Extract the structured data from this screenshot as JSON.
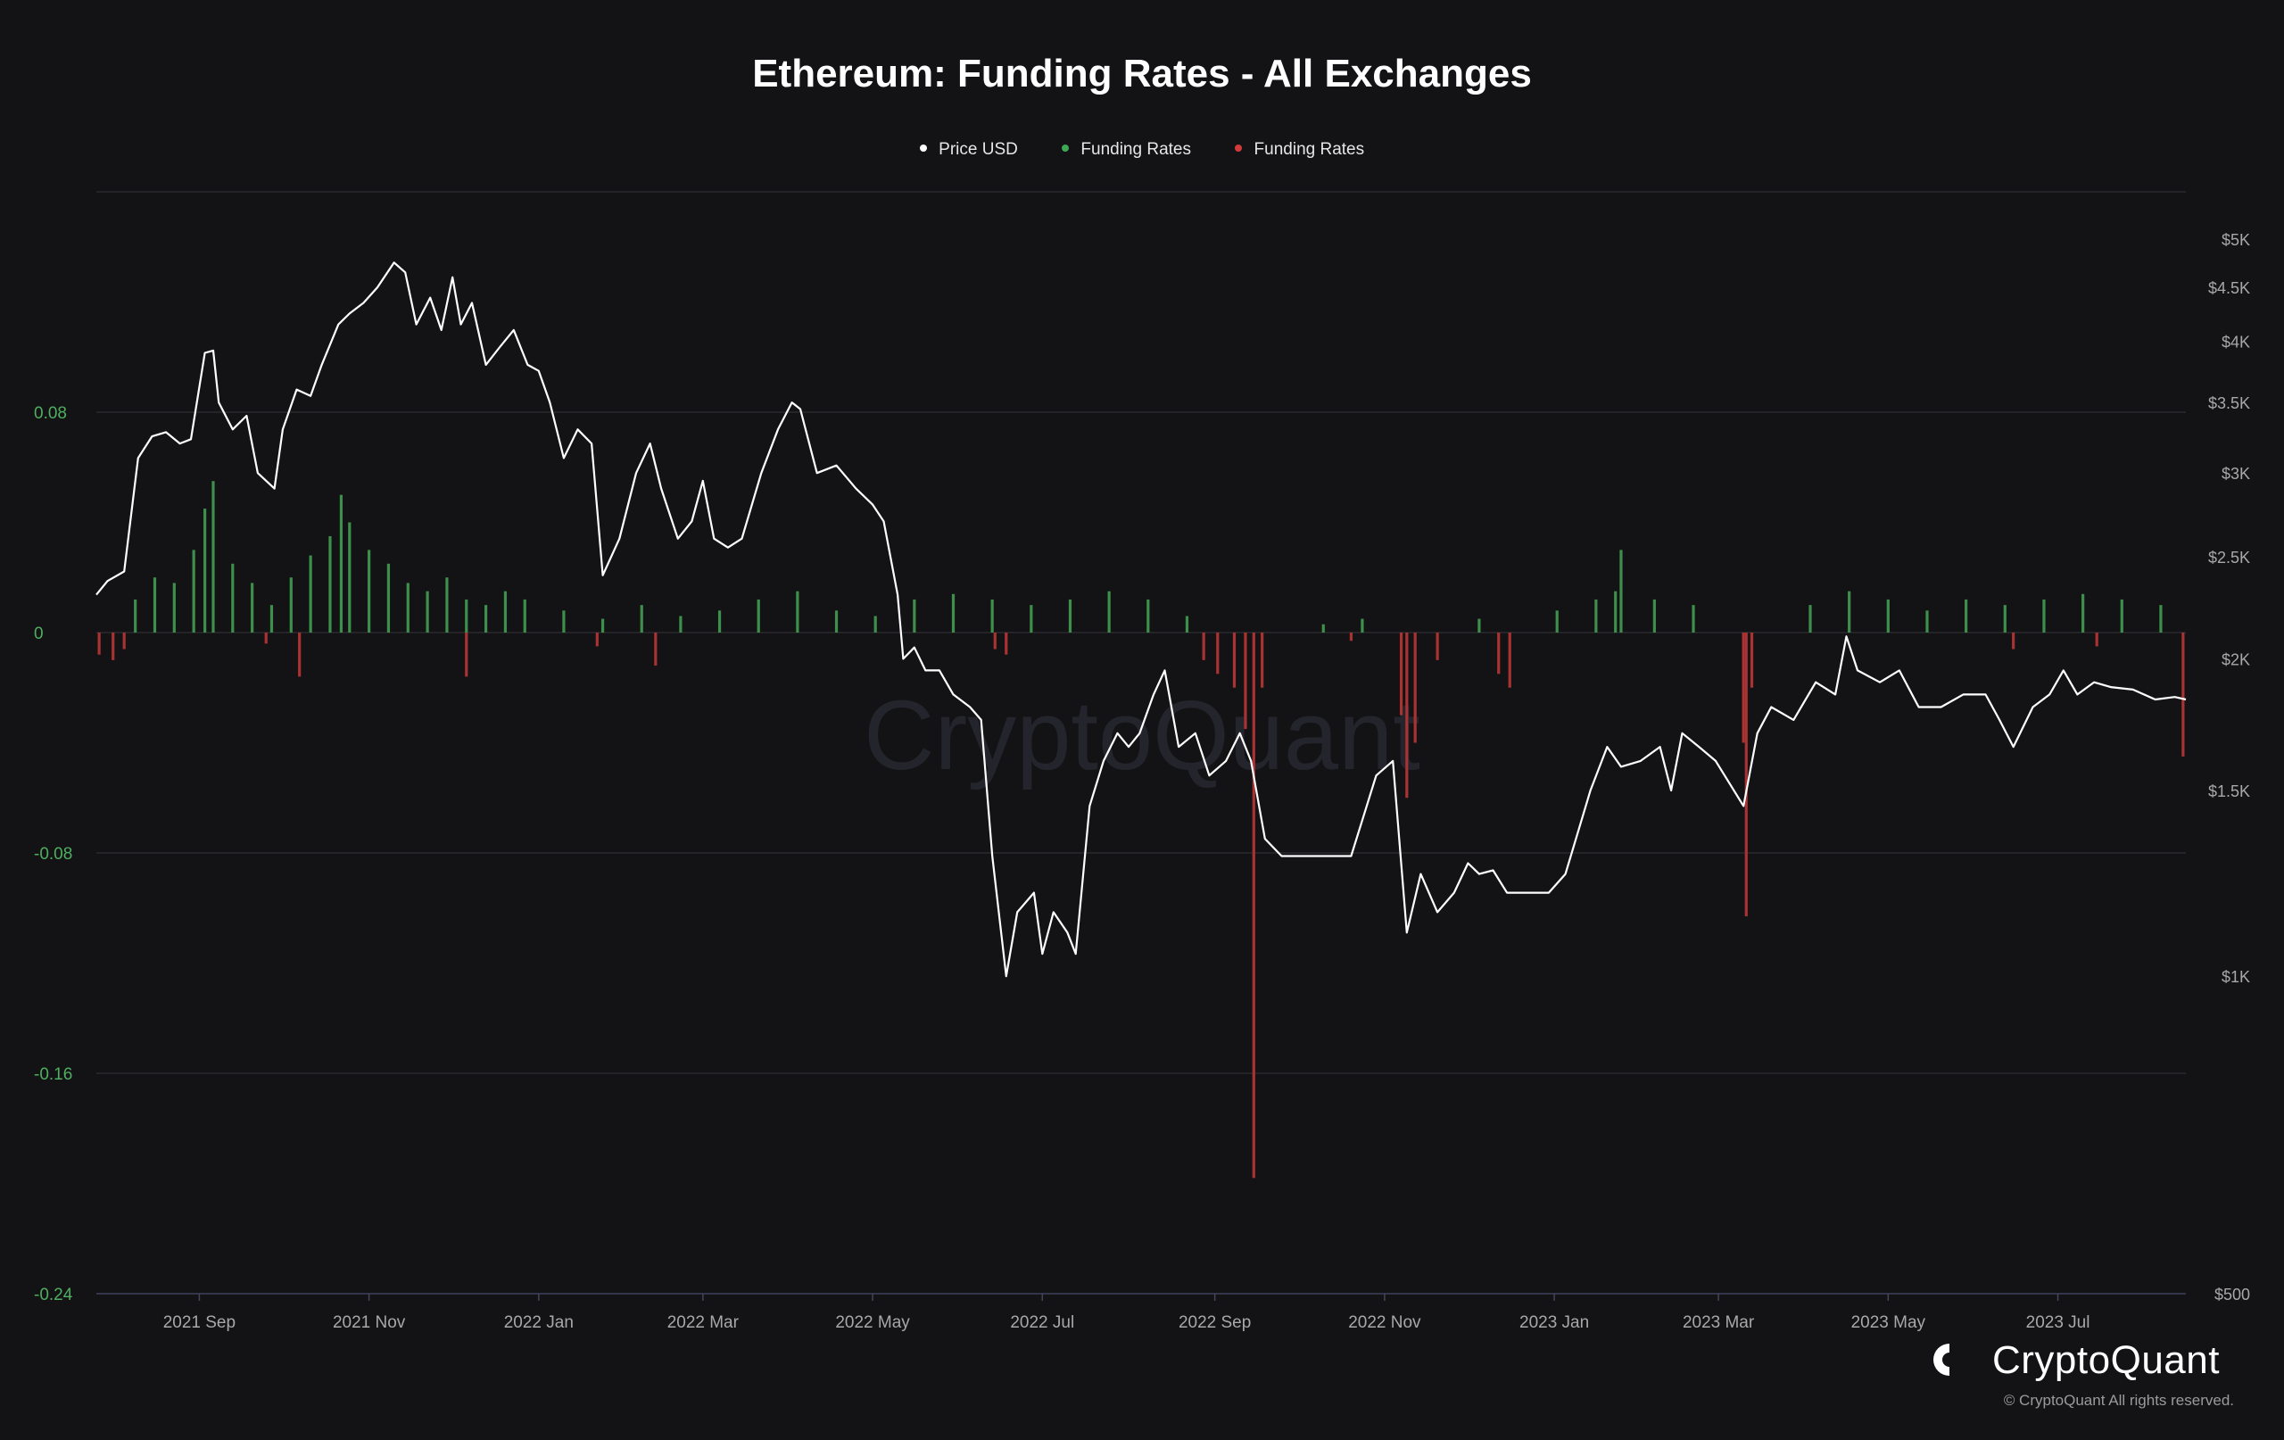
{
  "header": {
    "title": "Ethereum: Funding Rates - All Exchanges"
  },
  "legend": [
    {
      "label": "Price USD",
      "color": "#ffffff"
    },
    {
      "label": "Funding Rates",
      "color": "#3fa653"
    },
    {
      "label": "Funding Rates",
      "color": "#d23b3b"
    }
  ],
  "brand": {
    "name": "CryptoQuant",
    "copyright": "© CryptoQuant All rights reserved.",
    "watermark": "CryptoQuant"
  },
  "colors": {
    "price_line": "#ffffff",
    "positive": "#3d8f4b",
    "negative": "#a93232",
    "left_axis_text": "#4fae5f",
    "right_axis_text": "#a8a8a8",
    "grid": "#2a2a2e"
  },
  "chart_data": {
    "type": "line",
    "title": "Ethereum: Funding Rates - All Exchanges",
    "x_range": [
      "2021-07-26",
      "2023-08-16"
    ],
    "x_ticks": [
      {
        "date": "2021-09-01",
        "label": "2021 Sep"
      },
      {
        "date": "2021-11-01",
        "label": "2021 Nov"
      },
      {
        "date": "2022-01-01",
        "label": "2022 Jan"
      },
      {
        "date": "2022-03-01",
        "label": "2022 Mar"
      },
      {
        "date": "2022-05-01",
        "label": "2022 May"
      },
      {
        "date": "2022-07-01",
        "label": "2022 Jul"
      },
      {
        "date": "2022-09-01",
        "label": "2022 Sep"
      },
      {
        "date": "2022-11-01",
        "label": "2022 Nov"
      },
      {
        "date": "2023-01-01",
        "label": "2023 Jan"
      },
      {
        "date": "2023-03-01",
        "label": "2023 Mar"
      },
      {
        "date": "2023-05-01",
        "label": "2023 May"
      },
      {
        "date": "2023-07-01",
        "label": "2023 Jul"
      }
    ],
    "left_axis": {
      "range": [
        -0.24,
        0.16
      ],
      "ticks": [
        0.08,
        0,
        -0.08,
        -0.16,
        -0.24
      ],
      "labels": [
        "0.08",
        "0",
        "-0.08",
        "-0.16",
        "-0.24"
      ],
      "grid": true
    },
    "right_axis": {
      "scale": "log",
      "range": [
        500,
        5000
      ],
      "ticks": [
        {
          "value": 5000,
          "label": "$5K"
        },
        {
          "value": 4500,
          "label": "$4.5K"
        },
        {
          "value": 4000,
          "label": "$4K"
        },
        {
          "value": 3500,
          "label": "$3.5K"
        },
        {
          "value": 3000,
          "label": "$3K"
        },
        {
          "value": 2500,
          "label": "$2.5K"
        },
        {
          "value": 2000,
          "label": "$2K"
        },
        {
          "value": 1500,
          "label": "$1.5K"
        },
        {
          "value": 1000,
          "label": "$1K"
        },
        {
          "value": 500,
          "label": "$500"
        }
      ]
    },
    "series": [
      {
        "name": "Price USD",
        "type": "line",
        "axis": "right",
        "points": [
          [
            "2021-07-26",
            2300
          ],
          [
            "2021-07-30",
            2370
          ],
          [
            "2021-08-05",
            2420
          ],
          [
            "2021-08-10",
            3100
          ],
          [
            "2021-08-15",
            3250
          ],
          [
            "2021-08-20",
            3280
          ],
          [
            "2021-08-25",
            3200
          ],
          [
            "2021-08-29",
            3230
          ],
          [
            "2021-09-03",
            3900
          ],
          [
            "2021-09-06",
            3920
          ],
          [
            "2021-09-08",
            3500
          ],
          [
            "2021-09-13",
            3300
          ],
          [
            "2021-09-18",
            3400
          ],
          [
            "2021-09-22",
            3000
          ],
          [
            "2021-09-28",
            2900
          ],
          [
            "2021-10-01",
            3300
          ],
          [
            "2021-10-06",
            3600
          ],
          [
            "2021-10-11",
            3550
          ],
          [
            "2021-10-15",
            3800
          ],
          [
            "2021-10-21",
            4150
          ],
          [
            "2021-10-25",
            4250
          ],
          [
            "2021-10-30",
            4350
          ],
          [
            "2021-11-04",
            4500
          ],
          [
            "2021-11-10",
            4750
          ],
          [
            "2021-11-14",
            4650
          ],
          [
            "2021-11-18",
            4150
          ],
          [
            "2021-11-23",
            4400
          ],
          [
            "2021-11-27",
            4100
          ],
          [
            "2021-12-01",
            4600
          ],
          [
            "2021-12-04",
            4150
          ],
          [
            "2021-12-08",
            4350
          ],
          [
            "2021-12-13",
            3800
          ],
          [
            "2021-12-18",
            3950
          ],
          [
            "2021-12-23",
            4100
          ],
          [
            "2021-12-28",
            3800
          ],
          [
            "2022-01-01",
            3750
          ],
          [
            "2022-01-05",
            3500
          ],
          [
            "2022-01-10",
            3100
          ],
          [
            "2022-01-15",
            3300
          ],
          [
            "2022-01-20",
            3200
          ],
          [
            "2022-01-24",
            2400
          ],
          [
            "2022-01-30",
            2600
          ],
          [
            "2022-02-05",
            3000
          ],
          [
            "2022-02-10",
            3200
          ],
          [
            "2022-02-14",
            2900
          ],
          [
            "2022-02-20",
            2600
          ],
          [
            "2022-02-25",
            2700
          ],
          [
            "2022-03-01",
            2950
          ],
          [
            "2022-03-05",
            2600
          ],
          [
            "2022-03-10",
            2550
          ],
          [
            "2022-03-15",
            2600
          ],
          [
            "2022-03-22",
            3000
          ],
          [
            "2022-03-28",
            3300
          ],
          [
            "2022-04-02",
            3500
          ],
          [
            "2022-04-05",
            3450
          ],
          [
            "2022-04-11",
            3000
          ],
          [
            "2022-04-18",
            3050
          ],
          [
            "2022-04-25",
            2900
          ],
          [
            "2022-05-01",
            2800
          ],
          [
            "2022-05-05",
            2700
          ],
          [
            "2022-05-10",
            2300
          ],
          [
            "2022-05-12",
            2000
          ],
          [
            "2022-05-16",
            2050
          ],
          [
            "2022-05-20",
            1950
          ],
          [
            "2022-05-25",
            1950
          ],
          [
            "2022-05-30",
            1850
          ],
          [
            "2022-06-05",
            1800
          ],
          [
            "2022-06-09",
            1750
          ],
          [
            "2022-06-13",
            1300
          ],
          [
            "2022-06-18",
            1000
          ],
          [
            "2022-06-22",
            1150
          ],
          [
            "2022-06-28",
            1200
          ],
          [
            "2022-07-01",
            1050
          ],
          [
            "2022-07-05",
            1150
          ],
          [
            "2022-07-10",
            1100
          ],
          [
            "2022-07-13",
            1050
          ],
          [
            "2022-07-18",
            1450
          ],
          [
            "2022-07-23",
            1600
          ],
          [
            "2022-07-28",
            1700
          ],
          [
            "2022-08-01",
            1650
          ],
          [
            "2022-08-05",
            1700
          ],
          [
            "2022-08-10",
            1850
          ],
          [
            "2022-08-14",
            1950
          ],
          [
            "2022-08-19",
            1650
          ],
          [
            "2022-08-25",
            1700
          ],
          [
            "2022-08-30",
            1550
          ],
          [
            "2022-09-05",
            1600
          ],
          [
            "2022-09-10",
            1700
          ],
          [
            "2022-09-14",
            1600
          ],
          [
            "2022-09-19",
            1350
          ],
          [
            "2022-09-25",
            1300
          ],
          [
            "2022-10-02",
            1300
          ],
          [
            "2022-10-10",
            1300
          ],
          [
            "2022-10-20",
            1300
          ],
          [
            "2022-10-29",
            1550
          ],
          [
            "2022-11-04",
            1600
          ],
          [
            "2022-11-09",
            1100
          ],
          [
            "2022-11-14",
            1250
          ],
          [
            "2022-11-20",
            1150
          ],
          [
            "2022-11-26",
            1200
          ],
          [
            "2022-12-01",
            1280
          ],
          [
            "2022-12-05",
            1250
          ],
          [
            "2022-12-10",
            1260
          ],
          [
            "2022-12-15",
            1200
          ],
          [
            "2022-12-20",
            1200
          ],
          [
            "2022-12-30",
            1200
          ],
          [
            "2023-01-05",
            1250
          ],
          [
            "2023-01-14",
            1500
          ],
          [
            "2023-01-20",
            1650
          ],
          [
            "2023-01-25",
            1580
          ],
          [
            "2023-02-01",
            1600
          ],
          [
            "2023-02-08",
            1650
          ],
          [
            "2023-02-12",
            1500
          ],
          [
            "2023-02-16",
            1700
          ],
          [
            "2023-02-22",
            1650
          ],
          [
            "2023-02-28",
            1600
          ],
          [
            "2023-03-10",
            1450
          ],
          [
            "2023-03-15",
            1700
          ],
          [
            "2023-03-20",
            1800
          ],
          [
            "2023-03-28",
            1750
          ],
          [
            "2023-04-05",
            1900
          ],
          [
            "2023-04-12",
            1850
          ],
          [
            "2023-04-16",
            2100
          ],
          [
            "2023-04-20",
            1950
          ],
          [
            "2023-04-28",
            1900
          ],
          [
            "2023-05-05",
            1950
          ],
          [
            "2023-05-12",
            1800
          ],
          [
            "2023-05-20",
            1800
          ],
          [
            "2023-05-28",
            1850
          ],
          [
            "2023-06-05",
            1850
          ],
          [
            "2023-06-10",
            1750
          ],
          [
            "2023-06-15",
            1650
          ],
          [
            "2023-06-22",
            1800
          ],
          [
            "2023-06-28",
            1850
          ],
          [
            "2023-07-03",
            1950
          ],
          [
            "2023-07-08",
            1850
          ],
          [
            "2023-07-14",
            1900
          ],
          [
            "2023-07-20",
            1880
          ],
          [
            "2023-07-28",
            1870
          ],
          [
            "2023-08-05",
            1830
          ],
          [
            "2023-08-12",
            1840
          ],
          [
            "2023-08-16",
            1830
          ]
        ]
      },
      {
        "name": "Funding Rates",
        "type": "bar",
        "axis": "left",
        "sign": "positive",
        "points": [
          [
            "2021-08-09",
            0.012
          ],
          [
            "2021-08-16",
            0.02
          ],
          [
            "2021-08-23",
            0.018
          ],
          [
            "2021-08-30",
            0.03
          ],
          [
            "2021-09-03",
            0.045
          ],
          [
            "2021-09-06",
            0.055
          ],
          [
            "2021-09-13",
            0.025
          ],
          [
            "2021-09-20",
            0.018
          ],
          [
            "2021-09-27",
            0.01
          ],
          [
            "2021-10-04",
            0.02
          ],
          [
            "2021-10-11",
            0.028
          ],
          [
            "2021-10-18",
            0.035
          ],
          [
            "2021-10-22",
            0.05
          ],
          [
            "2021-10-25",
            0.04
          ],
          [
            "2021-11-01",
            0.03
          ],
          [
            "2021-11-08",
            0.025
          ],
          [
            "2021-11-15",
            0.018
          ],
          [
            "2021-11-22",
            0.015
          ],
          [
            "2021-11-29",
            0.02
          ],
          [
            "2021-12-06",
            0.012
          ],
          [
            "2021-12-13",
            0.01
          ],
          [
            "2021-12-20",
            0.015
          ],
          [
            "2021-12-27",
            0.012
          ],
          [
            "2022-01-10",
            0.008
          ],
          [
            "2022-01-24",
            0.005
          ],
          [
            "2022-02-07",
            0.01
          ],
          [
            "2022-02-21",
            0.006
          ],
          [
            "2022-03-07",
            0.008
          ],
          [
            "2022-03-21",
            0.012
          ],
          [
            "2022-04-04",
            0.015
          ],
          [
            "2022-04-18",
            0.008
          ],
          [
            "2022-05-02",
            0.006
          ],
          [
            "2022-05-16",
            0.012
          ],
          [
            "2022-05-30",
            0.014
          ],
          [
            "2022-06-13",
            0.012
          ],
          [
            "2022-06-27",
            0.01
          ],
          [
            "2022-07-11",
            0.012
          ],
          [
            "2022-07-25",
            0.015
          ],
          [
            "2022-08-08",
            0.012
          ],
          [
            "2022-08-22",
            0.006
          ],
          [
            "2022-10-10",
            0.003
          ],
          [
            "2022-10-24",
            0.005
          ],
          [
            "2022-12-05",
            0.005
          ],
          [
            "2023-01-02",
            0.008
          ],
          [
            "2023-01-16",
            0.012
          ],
          [
            "2023-01-23",
            0.015
          ],
          [
            "2023-01-25",
            0.03
          ],
          [
            "2023-02-06",
            0.012
          ],
          [
            "2023-02-20",
            0.01
          ],
          [
            "2023-04-03",
            0.01
          ],
          [
            "2023-04-17",
            0.015
          ],
          [
            "2023-05-01",
            0.012
          ],
          [
            "2023-05-15",
            0.008
          ],
          [
            "2023-05-29",
            0.012
          ],
          [
            "2023-06-12",
            0.01
          ],
          [
            "2023-06-26",
            0.012
          ],
          [
            "2023-07-10",
            0.014
          ],
          [
            "2023-07-24",
            0.012
          ],
          [
            "2023-08-07",
            0.01
          ]
        ]
      },
      {
        "name": "Funding Rates",
        "type": "bar",
        "axis": "left",
        "sign": "negative",
        "points": [
          [
            "2021-07-27",
            -0.008
          ],
          [
            "2021-08-01",
            -0.01
          ],
          [
            "2021-08-05",
            -0.006
          ],
          [
            "2021-09-25",
            -0.004
          ],
          [
            "2021-10-07",
            -0.016
          ],
          [
            "2021-12-06",
            -0.016
          ],
          [
            "2022-01-22",
            -0.005
          ],
          [
            "2022-02-12",
            -0.012
          ],
          [
            "2022-06-14",
            -0.006
          ],
          [
            "2022-06-18",
            -0.008
          ],
          [
            "2022-08-28",
            -0.01
          ],
          [
            "2022-09-02",
            -0.015
          ],
          [
            "2022-09-08",
            -0.02
          ],
          [
            "2022-09-12",
            -0.035
          ],
          [
            "2022-09-15",
            -0.198
          ],
          [
            "2022-09-18",
            -0.02
          ],
          [
            "2022-10-20",
            -0.003
          ],
          [
            "2022-11-07",
            -0.03
          ],
          [
            "2022-11-09",
            -0.06
          ],
          [
            "2022-11-12",
            -0.04
          ],
          [
            "2022-11-20",
            -0.01
          ],
          [
            "2022-12-12",
            -0.015
          ],
          [
            "2022-12-16",
            -0.02
          ],
          [
            "2023-03-10",
            -0.04
          ],
          [
            "2023-03-11",
            -0.103
          ],
          [
            "2023-03-13",
            -0.02
          ],
          [
            "2023-06-15",
            -0.006
          ],
          [
            "2023-07-15",
            -0.005
          ],
          [
            "2023-08-15",
            -0.045
          ]
        ]
      }
    ]
  }
}
